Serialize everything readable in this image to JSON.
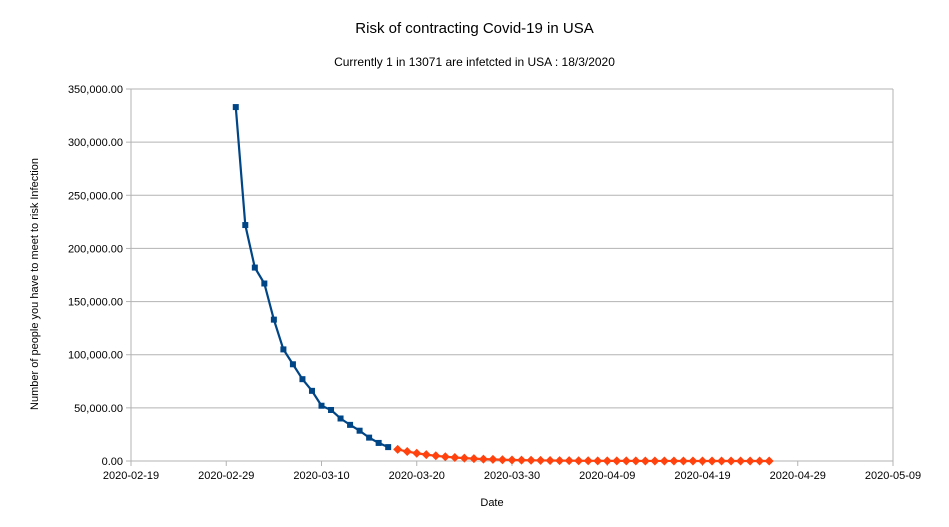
{
  "chart_data": {
    "type": "line",
    "title": "Risk of contracting Covid-19 in USA",
    "subtitle": "Currently  1 in 13071  are infetcted in USA :  18/3/2020",
    "xlabel": "Date",
    "ylabel": "Number of people you have to meet to risk Infection",
    "xlim": [
      "2020-02-19",
      "2020-05-09"
    ],
    "ylim": [
      0,
      350000
    ],
    "grid": true,
    "legend": "none",
    "x_ticks": [
      "2020-02-19",
      "2020-02-29",
      "2020-03-10",
      "2020-03-20",
      "2020-03-30",
      "2020-04-09",
      "2020-04-19",
      "2020-04-29",
      "2020-05-09"
    ],
    "y_ticks": [
      "0.00",
      "50,000.00",
      "100,000.00",
      "150,000.00",
      "200,000.00",
      "250,000.00",
      "300,000.00",
      "350,000.00"
    ],
    "y_tick_values": [
      0,
      50000,
      100000,
      150000,
      200000,
      250000,
      300000,
      350000
    ],
    "series": [
      {
        "color": "#004586",
        "marker": "square",
        "points": [
          {
            "x": "2020-03-01",
            "y": 333000
          },
          {
            "x": "2020-03-02",
            "y": 222000
          },
          {
            "x": "2020-03-03",
            "y": 182000
          },
          {
            "x": "2020-03-04",
            "y": 167000
          },
          {
            "x": "2020-03-05",
            "y": 133000
          },
          {
            "x": "2020-03-06",
            "y": 105000
          },
          {
            "x": "2020-03-07",
            "y": 91000
          },
          {
            "x": "2020-03-08",
            "y": 77000
          },
          {
            "x": "2020-03-09",
            "y": 66000
          },
          {
            "x": "2020-03-10",
            "y": 52000
          },
          {
            "x": "2020-03-11",
            "y": 48000
          },
          {
            "x": "2020-03-12",
            "y": 40000
          },
          {
            "x": "2020-03-13",
            "y": 34000
          },
          {
            "x": "2020-03-14",
            "y": 28500
          },
          {
            "x": "2020-03-15",
            "y": 22000
          },
          {
            "x": "2020-03-16",
            "y": 17000
          },
          {
            "x": "2020-03-17",
            "y": 13071
          }
        ]
      },
      {
        "color": "#ff420e",
        "marker": "diamond",
        "points": [
          {
            "x": "2020-03-18",
            "y": 10900
          },
          {
            "x": "2020-03-19",
            "y": 8900
          },
          {
            "x": "2020-03-20",
            "y": 7300
          },
          {
            "x": "2020-03-21",
            "y": 6000
          },
          {
            "x": "2020-03-22",
            "y": 4900
          },
          {
            "x": "2020-03-23",
            "y": 4000
          },
          {
            "x": "2020-03-24",
            "y": 3300
          },
          {
            "x": "2020-03-25",
            "y": 2700
          },
          {
            "x": "2020-03-26",
            "y": 2200
          },
          {
            "x": "2020-03-27",
            "y": 1800
          },
          {
            "x": "2020-03-28",
            "y": 1500
          },
          {
            "x": "2020-03-29",
            "y": 1200
          },
          {
            "x": "2020-03-30",
            "y": 1000
          },
          {
            "x": "2020-03-31",
            "y": 820
          },
          {
            "x": "2020-04-01",
            "y": 670
          },
          {
            "x": "2020-04-02",
            "y": 550
          },
          {
            "x": "2020-04-03",
            "y": 450
          },
          {
            "x": "2020-04-04",
            "y": 370
          },
          {
            "x": "2020-04-05",
            "y": 300
          },
          {
            "x": "2020-04-06",
            "y": 250
          },
          {
            "x": "2020-04-07",
            "y": 200
          },
          {
            "x": "2020-04-08",
            "y": 165
          },
          {
            "x": "2020-04-09",
            "y": 135
          },
          {
            "x": "2020-04-10",
            "y": 110
          },
          {
            "x": "2020-04-11",
            "y": 90
          },
          {
            "x": "2020-04-12",
            "y": 74
          },
          {
            "x": "2020-04-13",
            "y": 61
          },
          {
            "x": "2020-04-14",
            "y": 50
          },
          {
            "x": "2020-04-15",
            "y": 41
          },
          {
            "x": "2020-04-16",
            "y": 33
          },
          {
            "x": "2020-04-17",
            "y": 27
          },
          {
            "x": "2020-04-18",
            "y": 22
          },
          {
            "x": "2020-04-19",
            "y": 18
          },
          {
            "x": "2020-04-20",
            "y": 15
          },
          {
            "x": "2020-04-21",
            "y": 12
          },
          {
            "x": "2020-04-22",
            "y": 10
          },
          {
            "x": "2020-04-23",
            "y": 8
          },
          {
            "x": "2020-04-24",
            "y": 7
          },
          {
            "x": "2020-04-25",
            "y": 6
          },
          {
            "x": "2020-04-26",
            "y": 5
          }
        ]
      }
    ]
  }
}
